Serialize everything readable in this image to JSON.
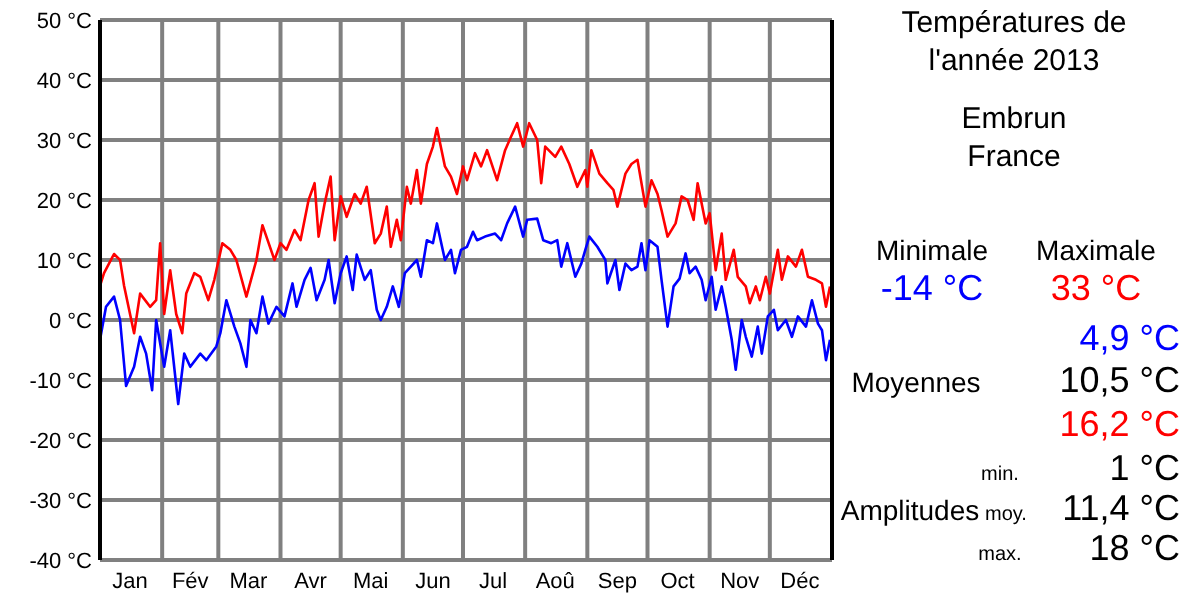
{
  "chart_data": {
    "type": "line",
    "title": "Températures de\nl'année 2013",
    "subtitle": "Embrun\nFrance",
    "xlim": [
      "2013-01-01",
      "2014-01-01"
    ],
    "xticks": [
      {
        "value": "2013-01-16",
        "label": "Jan"
      },
      {
        "value": "2013-02-01",
        "label": null
      },
      {
        "value": "2013-02-15",
        "label": "Fév"
      },
      {
        "value": "2013-03-01",
        "label": null
      },
      {
        "value": "2013-03-16",
        "label": "Mar"
      },
      {
        "value": "2013-04-01",
        "label": null
      },
      {
        "value": "2013-04-16",
        "label": "Avr"
      },
      {
        "value": "2013-05-01",
        "label": null
      },
      {
        "value": "2013-05-16",
        "label": "Mai"
      },
      {
        "value": "2013-06-01",
        "label": null
      },
      {
        "value": "2013-06-16",
        "label": "Jun"
      },
      {
        "value": "2013-07-01",
        "label": null
      },
      {
        "value": "2013-07-16",
        "label": "Jul"
      },
      {
        "value": "2013-08-01",
        "label": null
      },
      {
        "value": "2013-08-16",
        "label": "Aoû"
      },
      {
        "value": "2013-09-01",
        "label": null
      },
      {
        "value": "2013-09-16",
        "label": "Sep"
      },
      {
        "value": "2013-10-01",
        "label": null
      },
      {
        "value": "2013-10-16",
        "label": "Oct"
      },
      {
        "value": "2013-11-01",
        "label": null
      },
      {
        "value": "2013-11-16",
        "label": "Nov"
      },
      {
        "value": "2013-12-01",
        "label": null
      },
      {
        "value": "2013-12-16",
        "label": "Déc"
      }
    ],
    "ylim": [
      -40,
      50
    ],
    "yticks": [
      {
        "value": -40,
        "label": "-40 °C"
      },
      {
        "value": -30,
        "label": "-30 °C"
      },
      {
        "value": -20,
        "label": "-20 °C"
      },
      {
        "value": -10,
        "label": "-10 °C"
      },
      {
        "value": 0,
        "label": "0 °C"
      },
      {
        "value": 10,
        "label": "10 °C"
      },
      {
        "value": 20,
        "label": "20 °C"
      },
      {
        "value": 30,
        "label": "30 °C"
      },
      {
        "value": 40,
        "label": "40 °C"
      },
      {
        "value": 50,
        "label": "50 °C"
      }
    ],
    "grid": true,
    "series": [
      {
        "color": "#ff0000",
        "x": [
          "2013-01-01",
          "2013-01-03",
          "2013-01-08",
          "2013-01-11",
          "2013-01-13",
          "2013-01-18",
          "2013-01-21",
          "2013-01-26",
          "2013-01-29",
          "2013-01-31",
          "2013-02-02",
          "2013-02-05",
          "2013-02-08",
          "2013-02-11",
          "2013-02-13",
          "2013-02-17",
          "2013-02-20",
          "2013-02-24",
          "2013-02-27",
          "2013-03-03",
          "2013-03-07",
          "2013-03-10",
          "2013-03-15",
          "2013-03-20",
          "2013-03-23",
          "2013-03-29",
          "2013-04-01",
          "2013-04-04",
          "2013-04-08",
          "2013-04-11",
          "2013-04-15",
          "2013-04-18",
          "2013-04-20",
          "2013-04-23",
          "2013-04-26",
          "2013-04-28",
          "2013-05-01",
          "2013-05-04",
          "2013-05-08",
          "2013-05-11",
          "2013-05-14",
          "2013-05-18",
          "2013-05-21",
          "2013-05-24",
          "2013-05-26",
          "2013-05-29",
          "2013-05-31",
          "2013-06-03",
          "2013-06-05",
          "2013-06-08",
          "2013-06-10",
          "2013-06-13",
          "2013-06-16",
          "2013-06-18",
          "2013-06-22",
          "2013-06-25",
          "2013-06-28",
          "2013-07-01",
          "2013-07-03",
          "2013-07-07",
          "2013-07-10",
          "2013-07-13",
          "2013-07-18",
          "2013-07-22",
          "2013-07-25",
          "2013-07-28",
          "2013-07-31",
          "2013-08-03",
          "2013-08-07",
          "2013-08-09",
          "2013-08-11",
          "2013-08-16",
          "2013-08-19",
          "2013-08-23",
          "2013-08-27",
          "2013-08-31",
          "2013-09-01",
          "2013-09-03",
          "2013-09-07",
          "2013-09-11",
          "2013-09-14",
          "2013-09-16",
          "2013-09-20",
          "2013-09-23",
          "2013-09-26",
          "2013-09-30",
          "2013-10-03",
          "2013-10-06",
          "2013-10-08",
          "2013-10-11",
          "2013-10-15",
          "2013-10-18",
          "2013-10-21",
          "2013-10-24",
          "2013-10-26",
          "2013-10-30",
          "2013-11-01",
          "2013-11-04",
          "2013-11-07",
          "2013-11-09",
          "2013-11-13",
          "2013-11-15",
          "2013-11-19",
          "2013-11-21",
          "2013-11-24",
          "2013-11-26",
          "2013-11-29",
          "2013-12-01",
          "2013-12-05",
          "2013-12-07",
          "2013-12-10",
          "2013-12-14",
          "2013-12-17",
          "2013-12-20",
          "2013-12-24",
          "2013-12-27",
          "2013-12-29",
          "2013-12-31"
        ],
        "values": [
          5.7,
          7.8,
          11,
          10,
          5.7,
          -2.2,
          4.4,
          2.2,
          3.3,
          12.8,
          1,
          8.3,
          1,
          -2.2,
          4.4,
          7.8,
          7.2,
          3.3,
          6.7,
          12.8,
          11.7,
          10,
          3.9,
          10,
          15.8,
          10,
          12.8,
          11.7,
          15,
          13.3,
          20,
          22.8,
          13.9,
          19.4,
          23.9,
          13.3,
          20.6,
          17.2,
          21,
          19.4,
          22.2,
          12.8,
          14.4,
          18.9,
          12.2,
          16.7,
          13.3,
          22.2,
          19.4,
          25,
          19.4,
          26,
          28.9,
          32,
          25.6,
          23.9,
          21,
          25.6,
          23.3,
          27.8,
          25.6,
          28.3,
          23.3,
          28.3,
          30.6,
          32.8,
          28.9,
          32.8,
          30,
          22.8,
          28.9,
          27.2,
          28.9,
          26,
          22.2,
          25,
          22.2,
          28.3,
          24.4,
          22.8,
          21.7,
          18.9,
          24.4,
          26,
          26.7,
          18.9,
          23.3,
          21,
          18.3,
          13.9,
          16.1,
          20.6,
          20,
          16.7,
          22.8,
          16.1,
          17.8,
          8.3,
          14.4,
          6.7,
          11.7,
          7.2,
          5.6,
          2.8,
          5.6,
          3.3,
          7.2,
          4.4,
          11.7,
          6.7,
          10.6,
          8.9,
          11.7,
          7.2,
          6.7,
          6.1,
          2.2,
          5.6
        ]
      },
      {
        "color": "#0000ff",
        "x": [
          "2013-01-01",
          "2013-01-04",
          "2013-01-08",
          "2013-01-11",
          "2013-01-14",
          "2013-01-18",
          "2013-01-21",
          "2013-01-24",
          "2013-01-27",
          "2013-01-29",
          "2013-02-02",
          "2013-02-05",
          "2013-02-09",
          "2013-02-12",
          "2013-02-15",
          "2013-02-20",
          "2013-02-23",
          "2013-02-28",
          "2013-03-02",
          "2013-03-05",
          "2013-03-09",
          "2013-03-12",
          "2013-03-15",
          "2013-03-17",
          "2013-03-20",
          "2013-03-23",
          "2013-03-26",
          "2013-03-30",
          "2013-04-03",
          "2013-04-07",
          "2013-04-09",
          "2013-04-13",
          "2013-04-16",
          "2013-04-19",
          "2013-04-23",
          "2013-04-25",
          "2013-04-28",
          "2013-05-01",
          "2013-05-04",
          "2013-05-07",
          "2013-05-09",
          "2013-05-13",
          "2013-05-16",
          "2013-05-19",
          "2013-05-21",
          "2013-05-24",
          "2013-05-27",
          "2013-05-30",
          "2013-06-02",
          "2013-06-05",
          "2013-06-08",
          "2013-06-10",
          "2013-06-13",
          "2013-06-16",
          "2013-06-18",
          "2013-06-22",
          "2013-06-25",
          "2013-06-27",
          "2013-06-30",
          "2013-07-03",
          "2013-07-06",
          "2013-07-08",
          "2013-07-12",
          "2013-07-17",
          "2013-07-20",
          "2013-07-23",
          "2013-07-27",
          "2013-07-31",
          "2013-08-02",
          "2013-08-07",
          "2013-08-10",
          "2013-08-14",
          "2013-08-17",
          "2013-08-19",
          "2013-08-22",
          "2013-08-26",
          "2013-08-29",
          "2013-08-31",
          "2013-09-02",
          "2013-09-06",
          "2013-09-10",
          "2013-09-11",
          "2013-09-15",
          "2013-09-17",
          "2013-09-20",
          "2013-09-23",
          "2013-09-26",
          "2013-09-28",
          "2013-09-30",
          "2013-10-02",
          "2013-10-06",
          "2013-10-08",
          "2013-10-11",
          "2013-10-14",
          "2013-10-17",
          "2013-10-20",
          "2013-10-22",
          "2013-10-25",
          "2013-10-28",
          "2013-10-30",
          "2013-11-02",
          "2013-11-04",
          "2013-11-07",
          "2013-11-09",
          "2013-11-12",
          "2013-11-14",
          "2013-11-17",
          "2013-11-19",
          "2013-11-22",
          "2013-11-25",
          "2013-11-27",
          "2013-11-30",
          "2013-12-03",
          "2013-12-05",
          "2013-12-09",
          "2013-12-12",
          "2013-12-15",
          "2013-12-19",
          "2013-12-22",
          "2013-12-25",
          "2013-12-27",
          "2013-12-29",
          "2013-12-31"
        ],
        "values": [
          -3.3,
          2.2,
          3.9,
          0,
          -11,
          -7.8,
          -2.8,
          -5.6,
          -11.7,
          0,
          -7.8,
          -1.7,
          -14,
          -5.6,
          -7.8,
          -5.6,
          -6.7,
          -4.4,
          -2.2,
          3.3,
          -1.1,
          -3.9,
          -7.8,
          0,
          -2.2,
          3.9,
          -0.6,
          2.2,
          0.6,
          6.1,
          2.2,
          6.7,
          8.7,
          3.3,
          6.7,
          10,
          2.8,
          7.8,
          10.6,
          5,
          10.9,
          6.7,
          8.3,
          1.7,
          0,
          2.2,
          5.6,
          2.2,
          7.8,
          8.9,
          10,
          7.2,
          13.3,
          12.8,
          16.1,
          10,
          11.7,
          7.8,
          11.7,
          12.2,
          14.7,
          13.3,
          13.9,
          14.4,
          13.3,
          16.1,
          18.9,
          13.9,
          16.7,
          16.9,
          13.3,
          12.8,
          13.3,
          8.9,
          12.8,
          7.2,
          9.4,
          11.7,
          13.9,
          12.2,
          10,
          6.1,
          10,
          5,
          9.4,
          8.3,
          8.9,
          12.8,
          8.3,
          13.3,
          12.2,
          6.7,
          -1.1,
          5.6,
          6.9,
          11.1,
          7.8,
          8.9,
          6.7,
          3.3,
          7.2,
          1.7,
          5.6,
          2.2,
          -3.3,
          -8.3,
          0,
          -2.8,
          -6.1,
          -1.1,
          -5.6,
          0.6,
          1.7,
          -1.7,
          0,
          -2.8,
          0.6,
          -1.1,
          3.3,
          -0.6,
          -1.7,
          -6.7,
          -3.3
        ]
      }
    ],
    "annotations": [
      "Minimale",
      "Maximale",
      "-14 °C",
      "33 °C",
      "4,9 °C",
      "Moyennes",
      "10,5 °C",
      "16,2 °C",
      "min.",
      "1 °C",
      "Amplitudes",
      "moy.",
      "11,4 °C",
      "max.",
      "18 °C"
    ]
  }
}
